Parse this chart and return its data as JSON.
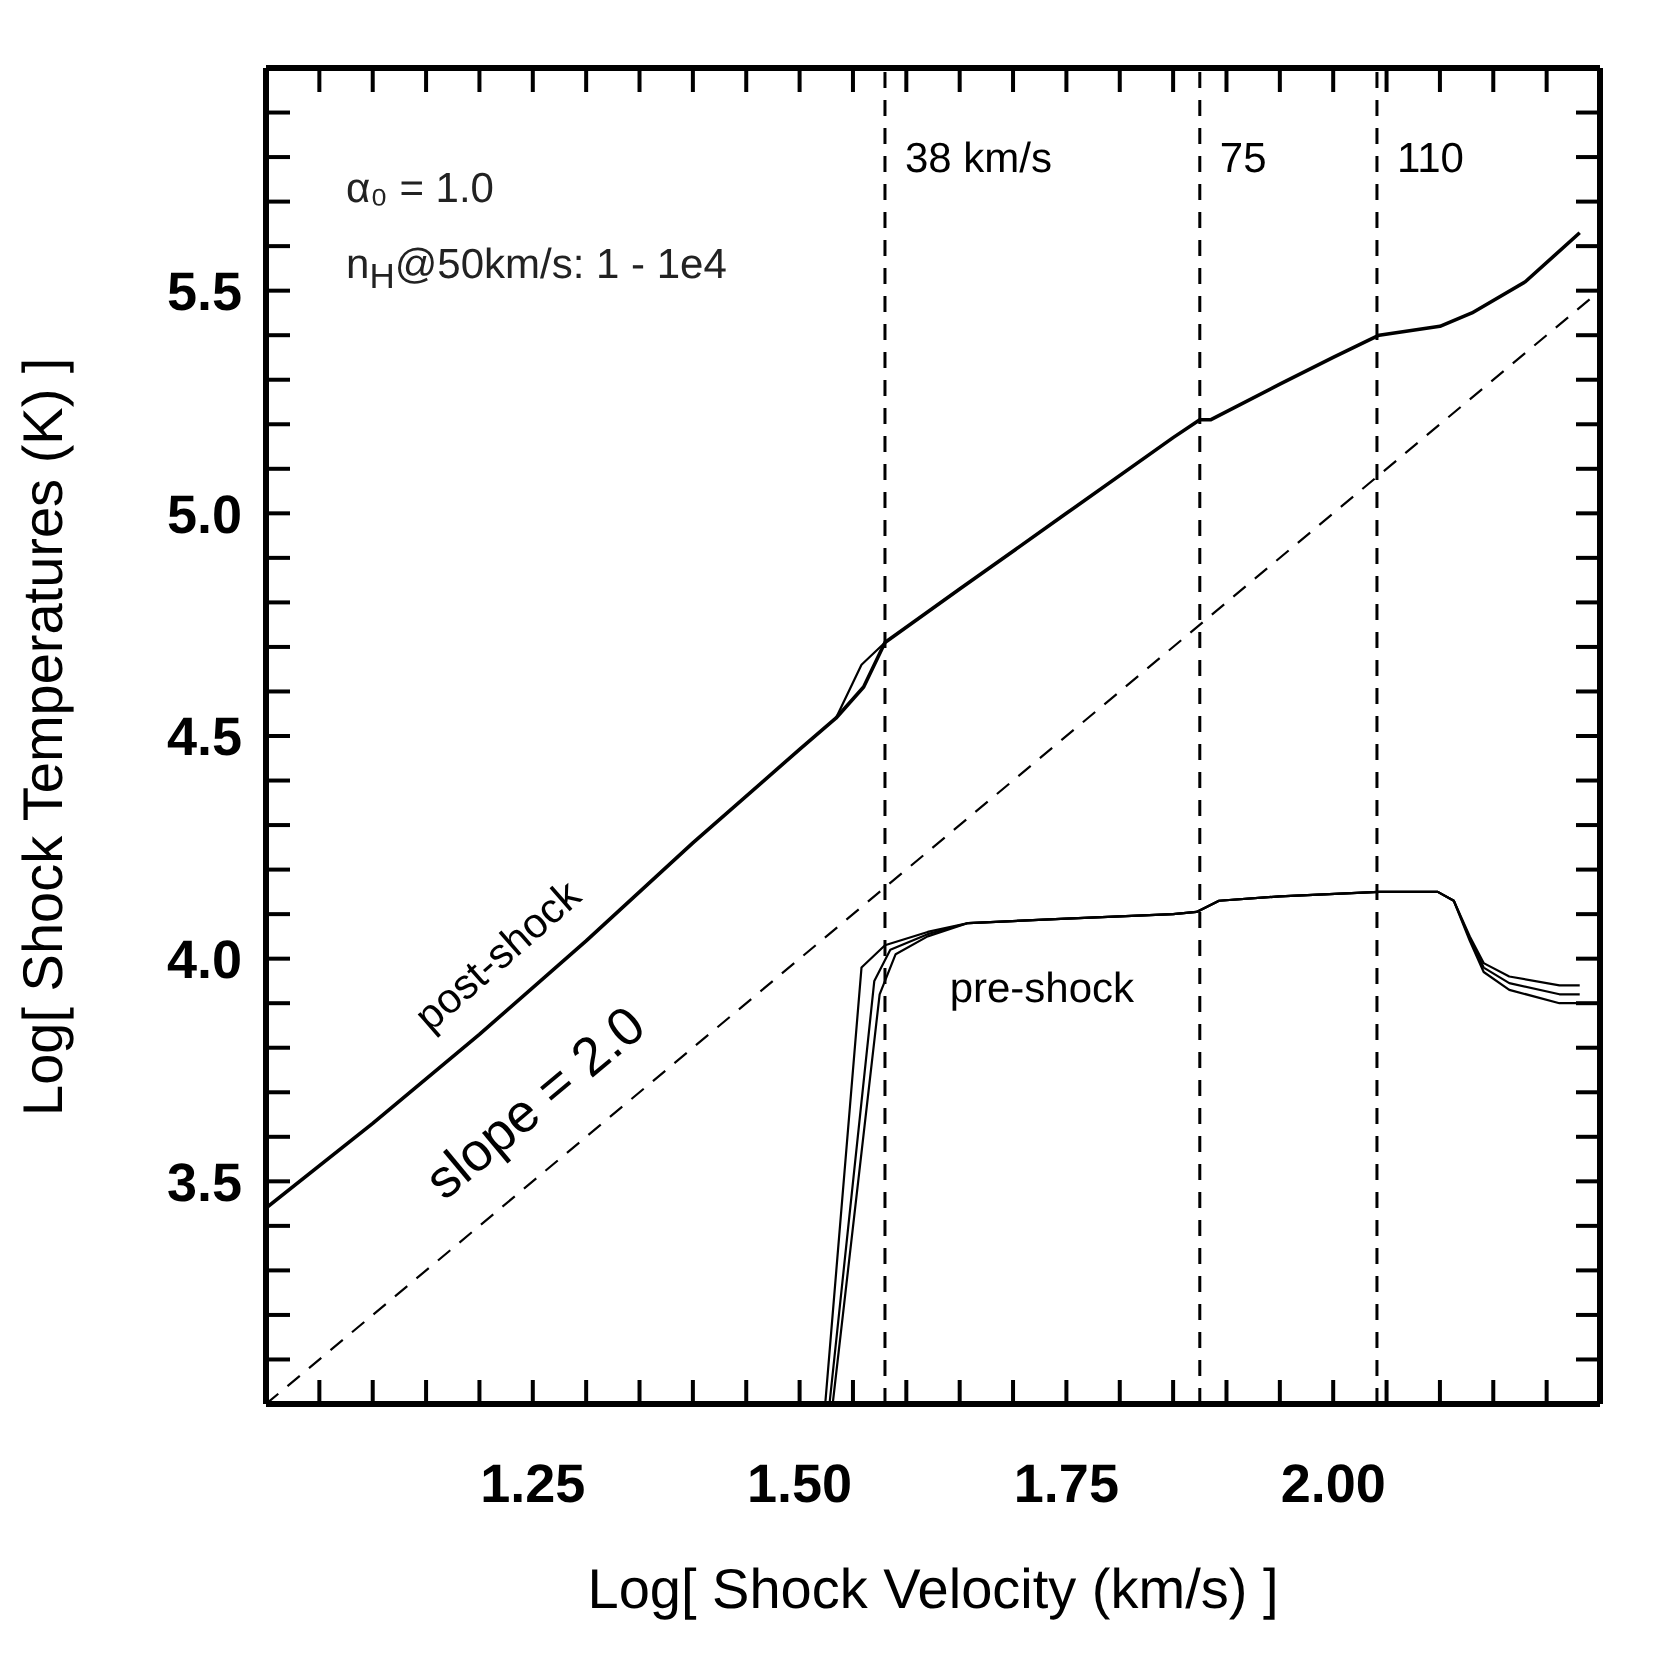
{
  "chart_data": {
    "type": "line",
    "xlabel": "Log[ Shock Velocity (km/s) ]",
    "ylabel": "Log[ Shock Temperatures (K) ]",
    "xlim": [
      1.0,
      2.25
    ],
    "ylim": [
      3.0,
      6.0
    ],
    "xticks": [
      {
        "value": 1.05,
        "label": null
      },
      {
        "value": 1.1,
        "label": null
      },
      {
        "value": 1.15,
        "label": null
      },
      {
        "value": 1.2,
        "label": null
      },
      1.25,
      {
        "value": 1.3,
        "label": null
      },
      {
        "value": 1.35,
        "label": null
      },
      {
        "value": 1.4,
        "label": null
      },
      {
        "value": 1.45,
        "label": null
      },
      {
        "value": 1.5,
        "label": "1.50"
      },
      {
        "value": 1.55,
        "label": null
      },
      {
        "value": 1.6,
        "label": null
      },
      {
        "value": 1.65,
        "label": null
      },
      {
        "value": 1.7,
        "label": null
      },
      1.75,
      {
        "value": 1.8,
        "label": null
      },
      {
        "value": 1.85,
        "label": null
      },
      {
        "value": 1.9,
        "label": null
      },
      {
        "value": 1.95,
        "label": null
      },
      {
        "value": 2.0,
        "label": "2.00"
      },
      {
        "value": 2.05,
        "label": null
      },
      {
        "value": 2.1,
        "label": null
      },
      {
        "value": 2.15,
        "label": null
      },
      {
        "value": 2.2,
        "label": null
      }
    ],
    "yticks": [
      {
        "value": 3.1,
        "label": null
      },
      {
        "value": 3.2,
        "label": null
      },
      {
        "value": 3.3,
        "label": null
      },
      {
        "value": 3.4,
        "label": null
      },
      3.5,
      {
        "value": 3.6,
        "label": null
      },
      {
        "value": 3.7,
        "label": null
      },
      {
        "value": 3.8,
        "label": null
      },
      {
        "value": 3.9,
        "label": null
      },
      {
        "value": 4.0,
        "label": "4.0"
      },
      {
        "value": 4.1,
        "label": null
      },
      {
        "value": 4.2,
        "label": null
      },
      {
        "value": 4.3,
        "label": null
      },
      {
        "value": 4.4,
        "label": null
      },
      4.5,
      {
        "value": 4.6,
        "label": null
      },
      {
        "value": 4.7,
        "label": null
      },
      {
        "value": 4.8,
        "label": null
      },
      {
        "value": 4.9,
        "label": null
      },
      {
        "value": 5.0,
        "label": "5.0"
      },
      {
        "value": 5.1,
        "label": null
      },
      {
        "value": 5.2,
        "label": null
      },
      {
        "value": 5.3,
        "label": null
      },
      {
        "value": 5.4,
        "label": null
      },
      5.5,
      {
        "value": 5.6,
        "label": null
      },
      {
        "value": 5.7,
        "label": null
      },
      {
        "value": 5.8,
        "label": null
      },
      {
        "value": 5.9,
        "label": null
      }
    ],
    "series": [
      {
        "name": "post-shock",
        "color": "#000000",
        "x": [
          1.0,
          1.1,
          1.2,
          1.3,
          1.4,
          1.5,
          1.534,
          1.56,
          1.58,
          1.65,
          1.75,
          1.85,
          1.875,
          1.885,
          1.95,
          2.0,
          2.043,
          2.1,
          2.13,
          2.18,
          2.231
        ],
        "values": [
          3.44,
          3.63,
          3.83,
          4.04,
          4.26,
          4.47,
          4.54,
          4.61,
          4.71,
          4.83,
          5.0,
          5.17,
          5.21,
          5.21,
          5.29,
          5.35,
          5.4,
          5.42,
          5.45,
          5.52,
          5.63
        ]
      },
      {
        "color": "#000000",
        "x": [
          1.534,
          1.558,
          1.58
        ],
        "values": [
          4.54,
          4.66,
          4.71
        ]
      },
      {
        "name": "pre-shock",
        "color": "#000000",
        "x": [
          1.531,
          1.575,
          1.59,
          1.62,
          1.658,
          1.75,
          1.85,
          1.872,
          1.893,
          1.95,
          2.043,
          2.098,
          2.113,
          2.128,
          2.141,
          2.165,
          2.212,
          2.231
        ],
        "values": [
          3.0,
          3.92,
          4.01,
          4.05,
          4.08,
          4.09,
          4.1,
          4.105,
          4.13,
          4.14,
          4.15,
          4.15,
          4.13,
          4.04,
          3.97,
          3.93,
          3.9,
          3.9
        ]
      },
      {
        "color": "#000000",
        "x": [
          1.524,
          1.558,
          1.58,
          1.62,
          1.658,
          1.75,
          1.85,
          1.872,
          1.893,
          1.95,
          2.043,
          2.098,
          2.113,
          2.128,
          2.141,
          2.165,
          2.212,
          2.231
        ],
        "values": [
          3.0,
          3.98,
          4.03,
          4.06,
          4.08,
          4.09,
          4.1,
          4.105,
          4.13,
          4.14,
          4.15,
          4.15,
          4.13,
          4.05,
          3.99,
          3.96,
          3.94,
          3.94
        ]
      },
      {
        "color": "#000000",
        "x": [
          1.528,
          1.57,
          1.585,
          1.62,
          1.658,
          1.75,
          1.85,
          1.872,
          1.893,
          1.95,
          2.043,
          2.098,
          2.113,
          2.128,
          2.141,
          2.165,
          2.212,
          2.231
        ],
        "values": [
          3.0,
          3.95,
          4.02,
          4.055,
          4.08,
          4.09,
          4.1,
          4.105,
          4.13,
          4.14,
          4.15,
          4.15,
          4.13,
          4.045,
          3.98,
          3.945,
          3.92,
          3.92
        ]
      },
      {
        "name": "slope = 2.0",
        "color": "#000000",
        "line_style": "dashed",
        "x": [
          1.0,
          2.25
        ],
        "values": [
          3.0,
          5.5
        ]
      }
    ],
    "ref_lines": [
      {
        "axis": "x",
        "value": 1.58,
        "color": "#000000",
        "line_style": "dashed"
      },
      {
        "axis": "x",
        "value": 1.875,
        "color": "#000000",
        "line_style": "dashed"
      },
      {
        "axis": "x",
        "value": 2.041,
        "color": "#000000",
        "line_style": "dashed"
      }
    ],
    "annotations": [
      "α₀ = 1.0",
      "n$_{H}$@50km/s: 1 - 1e4",
      {
        "text": "38 km/s",
        "x": 1.58,
        "y": 5.8
      },
      {
        "text": "75",
        "x": 1.875,
        "y": 5.8
      },
      {
        "text": "110",
        "x": 2.041,
        "y": 5.8
      }
    ]
  }
}
